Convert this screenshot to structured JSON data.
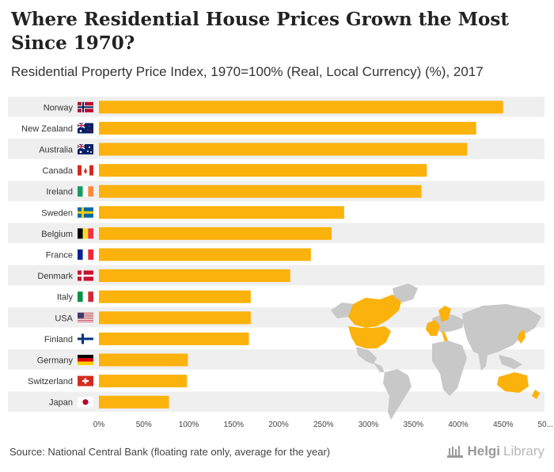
{
  "title": "Where Residential House Prices Grown the Most Since 1970?",
  "subtitle": "Residential Property Price Index, 1970=100% (Real, Local Currency) (%), 2017",
  "source": "Source: National Central Bank (floating rate only, average for the year)",
  "brand": {
    "name": "Helgi",
    "suffix": "Library"
  },
  "colors": {
    "bar": "#FBB20C",
    "band": "#EFEFEF",
    "map_land": "#C8C8C8",
    "map_highlight": "#FBB20C"
  },
  "chart_data": {
    "type": "bar",
    "orientation": "horizontal",
    "categories": [
      "Norway",
      "New Zealand",
      "Australia",
      "Canada",
      "Ireland",
      "Sweden",
      "Belgium",
      "France",
      "Denmark",
      "Italy",
      "USA",
      "Finland",
      "Germany",
      "Switzerland",
      "Japan"
    ],
    "values": [
      450,
      420,
      410,
      365,
      359,
      273,
      259,
      236,
      213,
      169,
      169,
      167,
      99,
      98,
      78
    ],
    "flags": [
      "norway-flag",
      "new-zealand-flag",
      "australia-flag",
      "canada-flag",
      "ireland-flag",
      "sweden-flag",
      "belgium-flag",
      "france-flag",
      "denmark-flag",
      "italy-flag",
      "usa-flag",
      "finland-flag",
      "germany-flag",
      "switzerland-flag",
      "japan-flag"
    ],
    "xlim": [
      0,
      500
    ],
    "xticks": [
      "0%",
      "50%",
      "100%",
      "150%",
      "200%",
      "250%",
      "300%",
      "350%",
      "400%",
      "450%",
      "50..."
    ],
    "grid": false
  }
}
